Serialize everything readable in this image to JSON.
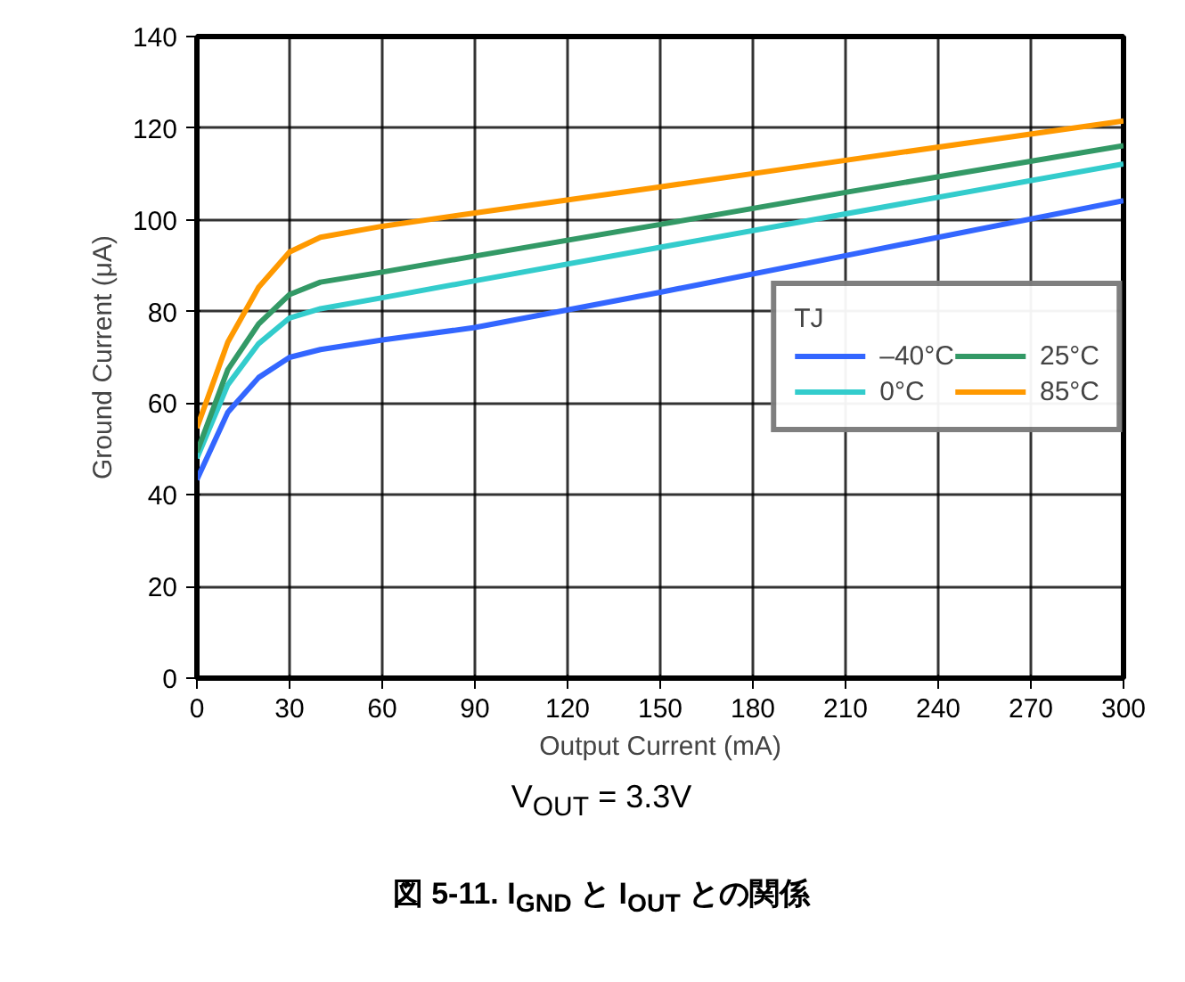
{
  "chart_data": {
    "type": "line",
    "xlabel": "Output Current (mA)",
    "ylabel": "Ground Current (μA)",
    "legend_title": "TJ",
    "x": [
      0,
      10,
      20,
      30,
      40,
      60,
      90,
      150,
      210,
      300
    ],
    "series": [
      {
        "name": "–40°C",
        "color": "#3366ff",
        "values": [
          43.3,
          58,
          65.6,
          70,
          71.7,
          73.8,
          76.5,
          84.2,
          92.2,
          104.2
        ]
      },
      {
        "name": "0°C",
        "color": "#33cccc",
        "values": [
          48,
          64,
          73,
          78.6,
          80.6,
          83,
          86.7,
          94,
          101.3,
          112.2
        ]
      },
      {
        "name": "25°C",
        "color": "#339966",
        "values": [
          49.3,
          67.3,
          77.3,
          83.7,
          86.4,
          88.6,
          92.1,
          99,
          106,
          116.2
        ]
      },
      {
        "name": "85°C",
        "color": "#ff9900",
        "values": [
          54.6,
          73.3,
          85.3,
          93,
          96.2,
          98.6,
          101.5,
          107.2,
          113,
          121.6
        ]
      }
    ],
    "xlim": [
      0,
      300
    ],
    "ylim": [
      0,
      140
    ],
    "xticks": [
      0,
      30,
      60,
      90,
      120,
      150,
      180,
      210,
      240,
      270,
      300
    ],
    "yticks": [
      0,
      20,
      40,
      60,
      80,
      100,
      120,
      140
    ],
    "grid": true,
    "legend": "right",
    "marker": "none",
    "line_style": "solid",
    "annotations": [
      "V$_{OUT}$ = 3.3V",
      "図 5-11. I$_{GND}$ と I$_{OUT}$ との関係"
    ]
  }
}
